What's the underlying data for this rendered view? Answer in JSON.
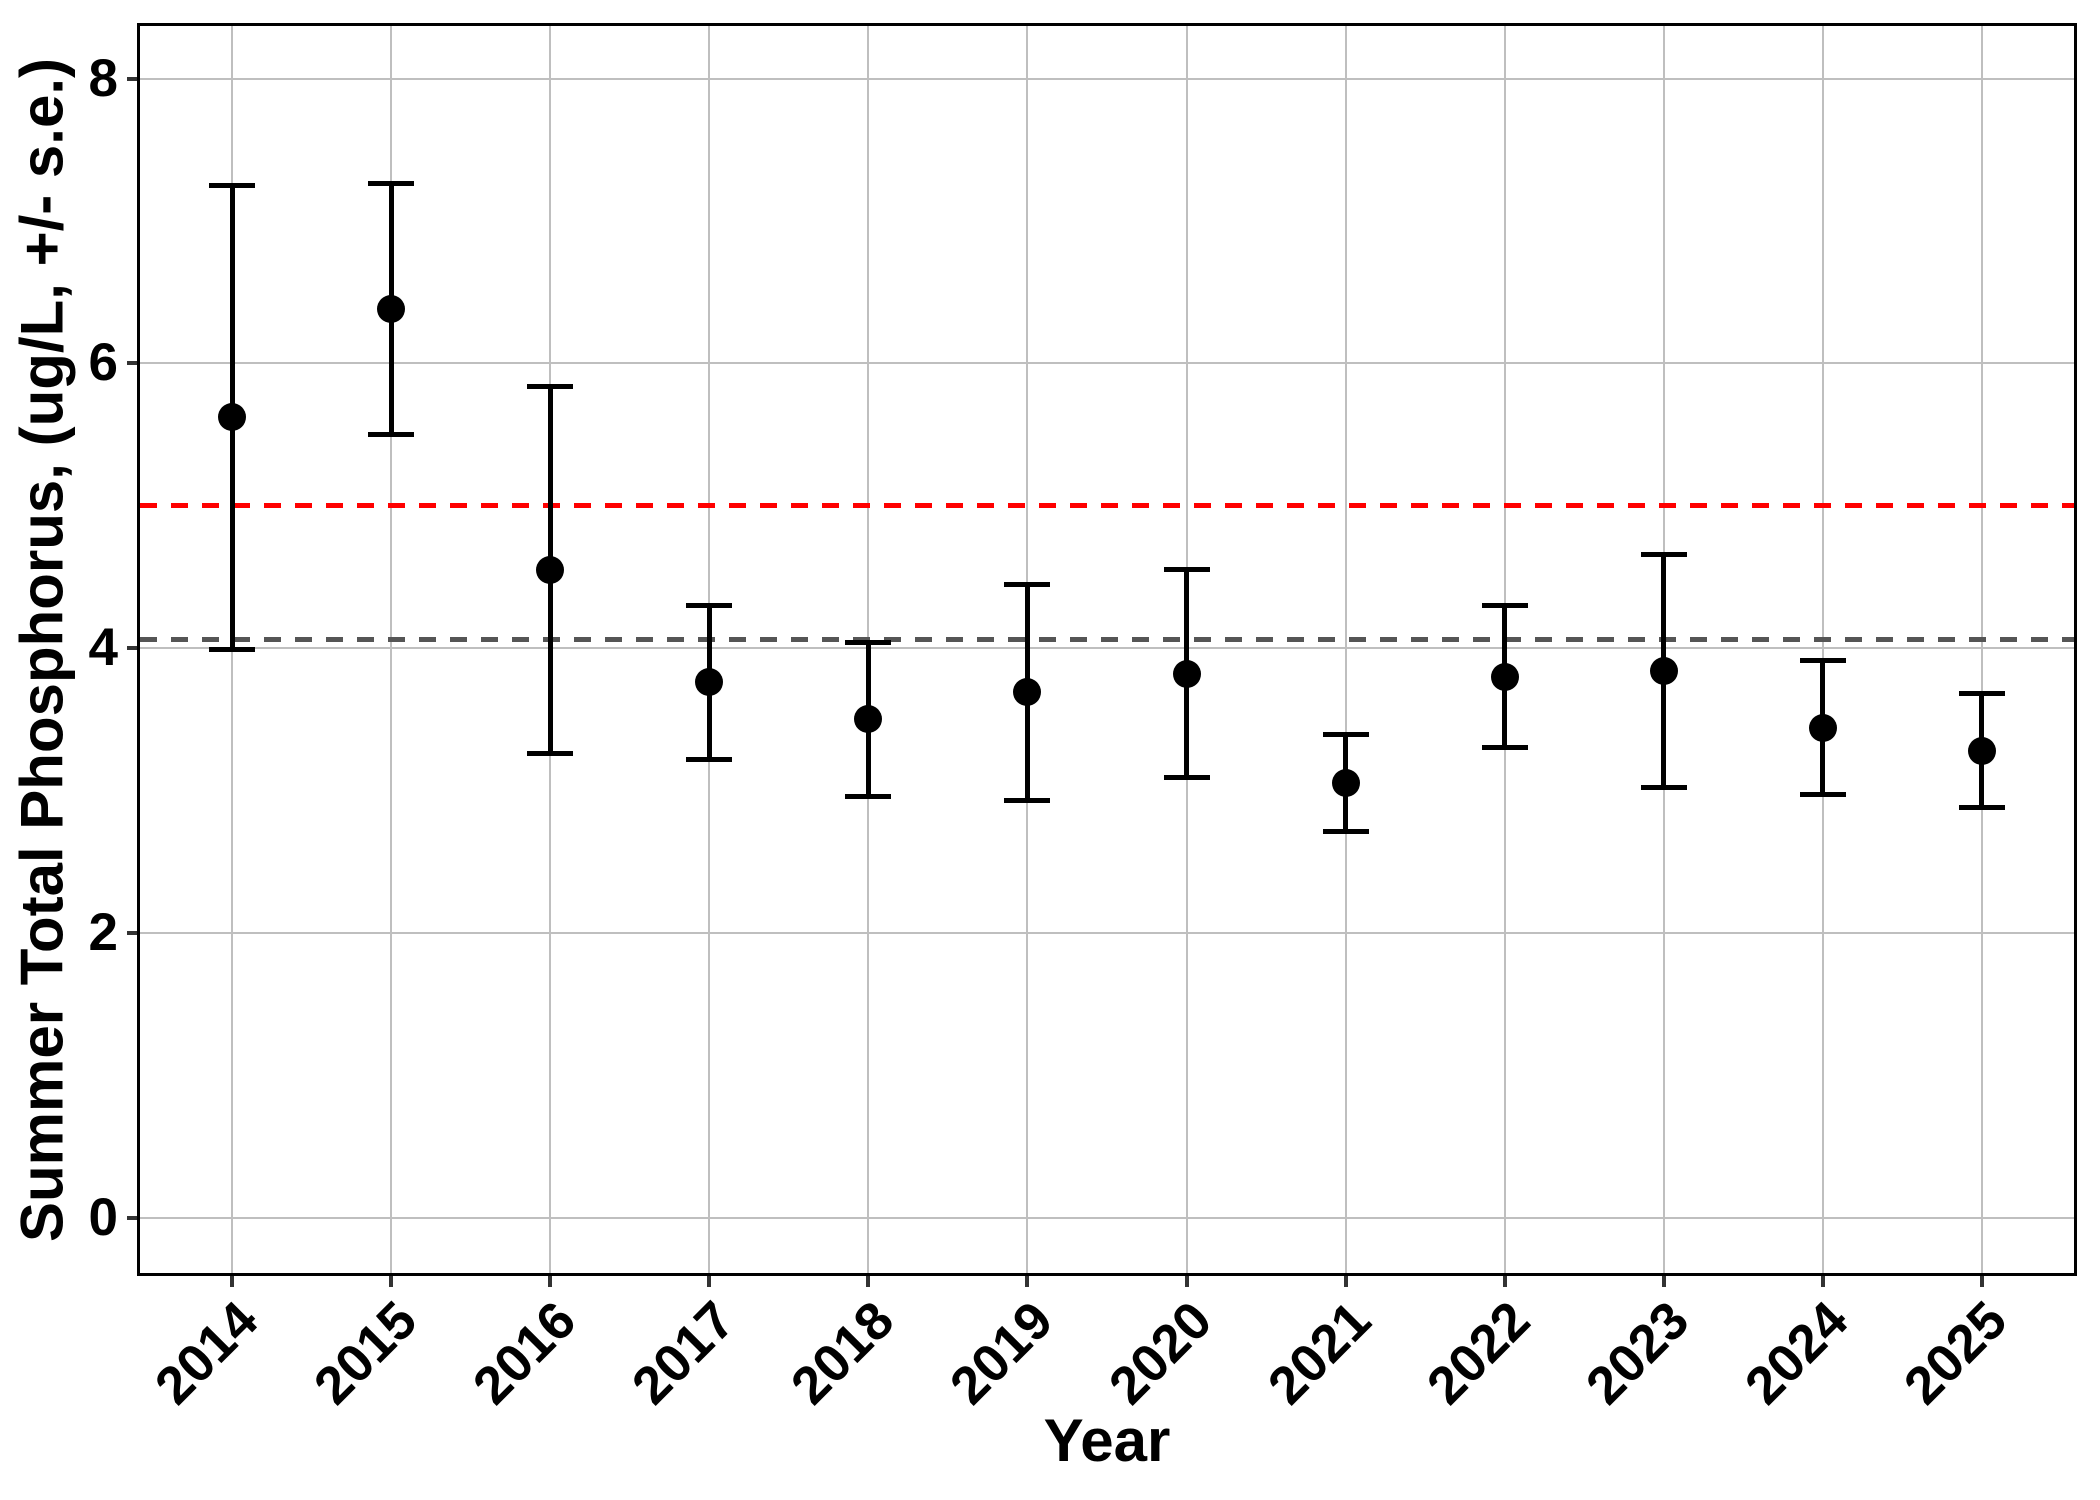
{
  "figure": {
    "background_color": "#ffffff"
  },
  "axes": {
    "y_title": "Summer Total Phosphorus, (ug/L, +/- s.e.)",
    "x_title": "Year",
    "y_tick_labels": [
      "0",
      "2",
      "4",
      "6",
      "8"
    ],
    "y_tick_values": [
      0,
      2,
      4,
      6,
      8
    ],
    "x_tick_labels": [
      "2014",
      "2015",
      "2016",
      "2017",
      "2018",
      "2019",
      "2020",
      "2021",
      "2022",
      "2023",
      "2024",
      "2025"
    ]
  },
  "chart_data": {
    "type": "scatter",
    "title": "",
    "xlabel": "Year",
    "ylabel": "Summer Total Phosphorus, (ug/L, +/- s.e.)",
    "categories": [
      "2014",
      "2015",
      "2016",
      "2017",
      "2018",
      "2019",
      "2020",
      "2021",
      "2022",
      "2023",
      "2024",
      "2025"
    ],
    "series": [
      {
        "name": "mean summer total phosphorus (ug/L)",
        "values": [
          5.62,
          6.38,
          4.55,
          3.76,
          3.5,
          3.69,
          3.82,
          3.05,
          3.8,
          3.84,
          3.44,
          3.28
        ]
      },
      {
        "name": "standard error (+/-)",
        "values": [
          1.63,
          0.88,
          1.29,
          0.54,
          0.54,
          0.76,
          0.73,
          0.34,
          0.5,
          0.82,
          0.47,
          0.4
        ]
      }
    ],
    "error_bar_upper": [
      7.25,
      7.26,
      5.84,
      4.3,
      4.04,
      4.45,
      4.55,
      3.39,
      4.3,
      4.66,
      3.91,
      3.68
    ],
    "error_bar_lower": [
      3.99,
      5.5,
      3.26,
      3.22,
      2.96,
      2.93,
      3.09,
      2.71,
      3.3,
      3.02,
      2.97,
      2.88
    ],
    "reference_lines": [
      {
        "name": "red-dashed-threshold",
        "value": 5.0,
        "color": "#ff0000",
        "style": "dashed"
      },
      {
        "name": "gray-dashed-baseline",
        "value": 4.06,
        "color": "#555555",
        "style": "dashed"
      }
    ],
    "ylim": [
      -0.41,
      8.39
    ],
    "grid": "major x and y, light gray",
    "legend_position": "none",
    "point_color": "#000000",
    "error_bar_color": "#000000"
  },
  "colors": {
    "point": "#000000",
    "error_bar": "#000000",
    "red_reference": "#ff0000",
    "gray_reference": "#555555",
    "gridline": "#bfbfbf",
    "tick": "#333333",
    "panel_border": "#000000"
  }
}
